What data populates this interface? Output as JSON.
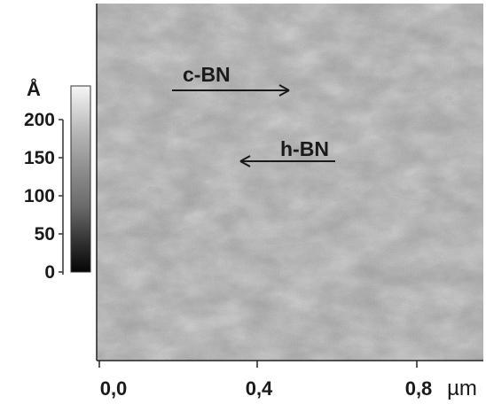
{
  "figure": {
    "colorbar": {
      "unit": "Å",
      "ticks": [
        "0",
        "50",
        "100",
        "150",
        "200"
      ]
    },
    "x_axis": {
      "ticks": [
        "0,0",
        "0,4",
        "0,8"
      ],
      "unit": "µm"
    },
    "annotations": {
      "c_bn": "c-BN",
      "h_bn": "h-BN"
    }
  }
}
